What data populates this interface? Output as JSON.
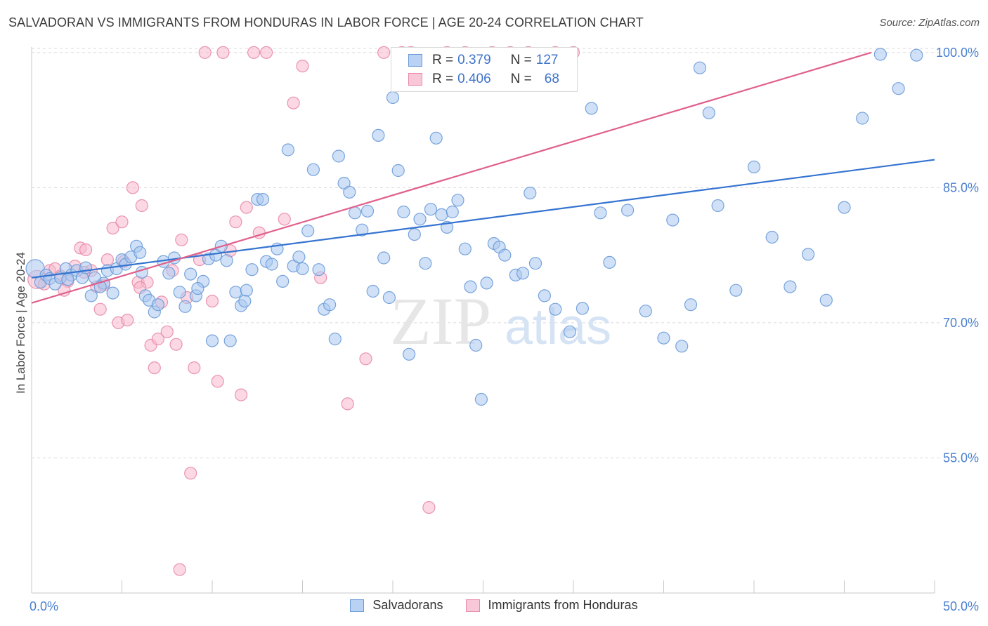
{
  "title": "SALVADORAN VS IMMIGRANTS FROM HONDURAS IN LABOR FORCE | AGE 20-24 CORRELATION CHART",
  "source": "Source: ZipAtlas.com",
  "watermark": {
    "zip": "ZIP",
    "atlas": "atlas"
  },
  "colors": {
    "blue_fill": "#aac8f0",
    "blue_stroke": "#6a9ad8",
    "blue_line": "#3574d0",
    "pink_fill": "#f7b8cc",
    "pink_stroke": "#e88aa8",
    "pink_line": "#e0608c",
    "tick_text": "#4a7fcf",
    "grid": "#d9d9d9"
  },
  "legend": {
    "rows": [
      {
        "r_label": "R =",
        "r_value": "0.379",
        "n_label": "N =",
        "n_value": "127",
        "color": "blue"
      },
      {
        "r_label": "R =",
        "r_value": "0.406",
        "n_label": "N =",
        "n_value": "68",
        "color": "pink"
      }
    ]
  },
  "bottom_legend": [
    "Salvadorans",
    "Immigrants from Honduras"
  ],
  "chart_data": {
    "type": "scatter",
    "title": "SALVADORAN VS IMMIGRANTS FROM HONDURAS IN LABOR FORCE | AGE 20-24 CORRELATION CHART",
    "xlabel": "",
    "ylabel": "In Labor Force | Age 20-24",
    "xlim": [
      0,
      50
    ],
    "ylim": [
      40,
      101
    ],
    "x_tick_labels": [
      "0.0%",
      "50.0%"
    ],
    "y_ticks": [
      55,
      70,
      85,
      100
    ],
    "y_tick_labels": [
      "55.0%",
      "70.0%",
      "85.0%",
      "100.0%"
    ],
    "grid": "horizontal dashed",
    "legend_position": "top-center",
    "series": [
      {
        "name": "Salvadorans",
        "color": "blue",
        "trend": {
          "x": [
            0,
            50
          ],
          "y": [
            75.0,
            88.1
          ]
        },
        "points": [
          [
            0.2,
            76.0
          ],
          [
            0.5,
            74.5
          ],
          [
            0.8,
            75.3
          ],
          [
            1.0,
            74.9
          ],
          [
            1.3,
            74.3
          ],
          [
            1.6,
            75.0
          ],
          [
            1.9,
            76.0
          ],
          [
            2.2,
            75.3
          ],
          [
            2.5,
            75.8
          ],
          [
            2.8,
            75.0
          ],
          [
            3.0,
            76.1
          ],
          [
            3.3,
            73.0
          ],
          [
            3.5,
            75.0
          ],
          [
            4.0,
            74.4
          ],
          [
            4.2,
            75.8
          ],
          [
            4.5,
            73.3
          ],
          [
            4.7,
            76.0
          ],
          [
            5.0,
            77.0
          ],
          [
            5.2,
            76.5
          ],
          [
            5.5,
            77.3
          ],
          [
            5.8,
            78.5
          ],
          [
            6.0,
            77.8
          ],
          [
            6.3,
            73.0
          ],
          [
            6.5,
            72.5
          ],
          [
            6.8,
            71.2
          ],
          [
            7.0,
            72.0
          ],
          [
            7.3,
            76.8
          ],
          [
            7.6,
            75.5
          ],
          [
            7.9,
            77.2
          ],
          [
            8.2,
            73.4
          ],
          [
            8.5,
            71.8
          ],
          [
            8.8,
            75.4
          ],
          [
            9.1,
            73.0
          ],
          [
            9.5,
            74.6
          ],
          [
            9.8,
            77.1
          ],
          [
            10.0,
            68.0
          ],
          [
            10.2,
            77.5
          ],
          [
            10.5,
            78.5
          ],
          [
            10.8,
            76.9
          ],
          [
            11.0,
            68.0
          ],
          [
            11.3,
            73.4
          ],
          [
            11.6,
            71.9
          ],
          [
            11.9,
            73.6
          ],
          [
            12.2,
            75.9
          ],
          [
            12.5,
            83.7
          ],
          [
            12.8,
            83.7
          ],
          [
            13.0,
            76.8
          ],
          [
            13.3,
            76.5
          ],
          [
            13.6,
            78.2
          ],
          [
            13.9,
            74.6
          ],
          [
            14.2,
            89.2
          ],
          [
            14.5,
            76.3
          ],
          [
            14.8,
            77.3
          ],
          [
            15.0,
            76.0
          ],
          [
            15.3,
            80.2
          ],
          [
            15.6,
            87.0
          ],
          [
            15.9,
            75.9
          ],
          [
            16.2,
            71.5
          ],
          [
            16.5,
            72.0
          ],
          [
            16.8,
            68.2
          ],
          [
            17.0,
            88.5
          ],
          [
            17.3,
            85.5
          ],
          [
            17.6,
            84.5
          ],
          [
            17.9,
            82.2
          ],
          [
            18.3,
            80.3
          ],
          [
            18.6,
            82.4
          ],
          [
            18.9,
            73.5
          ],
          [
            19.2,
            90.8
          ],
          [
            19.5,
            77.2
          ],
          [
            19.8,
            72.8
          ],
          [
            20.0,
            95.0
          ],
          [
            20.3,
            86.9
          ],
          [
            20.6,
            82.3
          ],
          [
            20.9,
            66.5
          ],
          [
            21.2,
            79.8
          ],
          [
            21.5,
            81.5
          ],
          [
            21.8,
            76.6
          ],
          [
            22.1,
            82.6
          ],
          [
            22.4,
            90.5
          ],
          [
            22.7,
            82.0
          ],
          [
            23.0,
            80.6
          ],
          [
            23.3,
            82.3
          ],
          [
            23.6,
            83.6
          ],
          [
            24.0,
            78.2
          ],
          [
            24.3,
            74.0
          ],
          [
            24.6,
            67.5
          ],
          [
            24.9,
            61.5
          ],
          [
            25.2,
            74.4
          ],
          [
            25.6,
            78.8
          ],
          [
            25.9,
            78.4
          ],
          [
            26.2,
            77.5
          ],
          [
            26.8,
            75.3
          ],
          [
            27.2,
            75.5
          ],
          [
            27.6,
            84.4
          ],
          [
            27.9,
            76.6
          ],
          [
            28.4,
            73.0
          ],
          [
            29.0,
            71.5
          ],
          [
            29.8,
            69.0
          ],
          [
            30.5,
            71.6
          ],
          [
            31.0,
            93.8
          ],
          [
            31.5,
            82.2
          ],
          [
            32.0,
            76.7
          ],
          [
            33.0,
            82.5
          ],
          [
            34.0,
            71.3
          ],
          [
            35.0,
            68.3
          ],
          [
            35.5,
            81.4
          ],
          [
            36.0,
            67.4
          ],
          [
            36.5,
            72.0
          ],
          [
            37.0,
            98.3
          ],
          [
            37.5,
            93.3
          ],
          [
            38.0,
            83.0
          ],
          [
            39.0,
            73.6
          ],
          [
            40.0,
            87.3
          ],
          [
            41.0,
            79.5
          ],
          [
            42.0,
            74.0
          ],
          [
            43.0,
            77.6
          ],
          [
            44.0,
            72.5
          ],
          [
            45.0,
            82.8
          ],
          [
            46.0,
            92.7
          ],
          [
            47.0,
            99.8
          ],
          [
            48.0,
            96.0
          ],
          [
            49.0,
            99.7
          ],
          [
            2.0,
            74.8
          ],
          [
            3.8,
            74.0
          ],
          [
            6.1,
            75.6
          ],
          [
            9.2,
            73.8
          ],
          [
            11.8,
            72.4
          ]
        ]
      },
      {
        "name": "Immigrants from Honduras",
        "color": "pink",
        "trend": {
          "x": [
            0,
            46.5
          ],
          "y": [
            72.2,
            100.0
          ]
        },
        "points": [
          [
            0.3,
            74.8
          ],
          [
            0.7,
            74.3
          ],
          [
            1.0,
            75.8
          ],
          [
            1.3,
            76.0
          ],
          [
            1.6,
            75.2
          ],
          [
            2.0,
            74.6
          ],
          [
            2.4,
            76.3
          ],
          [
            2.7,
            78.3
          ],
          [
            3.0,
            78.1
          ],
          [
            3.3,
            75.8
          ],
          [
            3.6,
            74.0
          ],
          [
            3.8,
            71.5
          ],
          [
            4.2,
            77.0
          ],
          [
            4.5,
            80.5
          ],
          [
            4.8,
            70.0
          ],
          [
            5.0,
            81.2
          ],
          [
            5.3,
            70.3
          ],
          [
            5.6,
            85.0
          ],
          [
            5.9,
            74.5
          ],
          [
            6.1,
            83.0
          ],
          [
            6.4,
            74.5
          ],
          [
            6.6,
            67.5
          ],
          [
            6.8,
            65.0
          ],
          [
            7.0,
            68.2
          ],
          [
            7.2,
            72.3
          ],
          [
            7.5,
            69.0
          ],
          [
            7.8,
            75.8
          ],
          [
            8.0,
            67.6
          ],
          [
            8.3,
            79.2
          ],
          [
            8.6,
            72.8
          ],
          [
            8.8,
            53.3
          ],
          [
            9.0,
            65.0
          ],
          [
            9.3,
            77.0
          ],
          [
            9.6,
            100.0
          ],
          [
            10.0,
            72.4
          ],
          [
            10.3,
            63.5
          ],
          [
            10.6,
            100.0
          ],
          [
            11.0,
            78.0
          ],
          [
            11.3,
            81.2
          ],
          [
            11.6,
            62.0
          ],
          [
            11.9,
            82.8
          ],
          [
            12.3,
            100.0
          ],
          [
            12.6,
            80.0
          ],
          [
            13.0,
            100.0
          ],
          [
            14.0,
            81.5
          ],
          [
            14.5,
            94.4
          ],
          [
            15.0,
            98.5
          ],
          [
            16.0,
            75.0
          ],
          [
            17.5,
            61.0
          ],
          [
            18.5,
            66.0
          ],
          [
            19.5,
            100.0
          ],
          [
            20.5,
            100.0
          ],
          [
            21.0,
            100.0
          ],
          [
            22.0,
            49.5
          ],
          [
            23.0,
            100.0
          ],
          [
            24.0,
            100.0
          ],
          [
            25.5,
            100.0
          ],
          [
            26.5,
            100.0
          ],
          [
            27.5,
            100.0
          ],
          [
            28.0,
            97.5
          ],
          [
            29.0,
            100.0
          ],
          [
            30.0,
            100.0
          ],
          [
            8.2,
            42.6
          ],
          [
            4.0,
            74.2
          ],
          [
            1.8,
            73.6
          ],
          [
            6.0,
            73.9
          ],
          [
            2.9,
            75.6
          ],
          [
            5.1,
            76.8
          ]
        ]
      }
    ]
  }
}
